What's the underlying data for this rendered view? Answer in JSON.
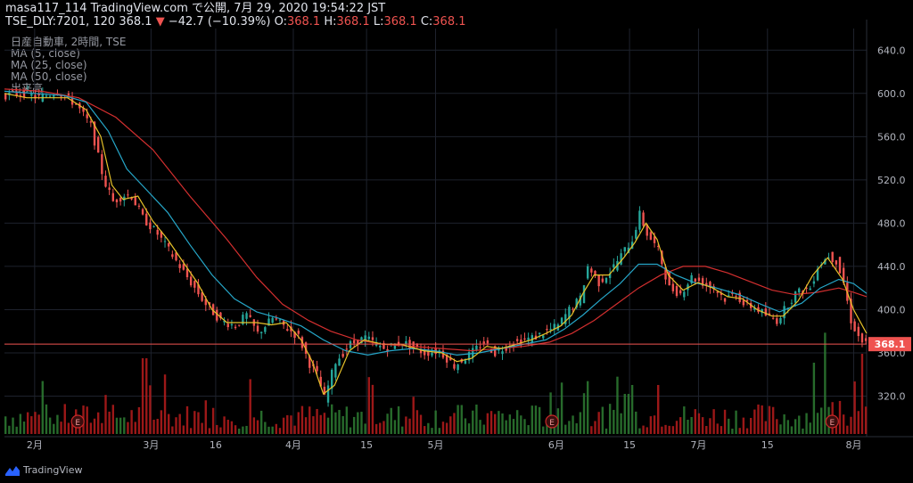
{
  "header": {
    "line1": "masa117_114 TradingView.com で公開, 7月 29, 2020 19:54:22 JST",
    "symbol": "TSE_DLY:7201, 120",
    "last": "368.1",
    "arrow": "▼",
    "change": "−42.7 (−10.39%)",
    "o_label": "O:",
    "o_val": "368.1",
    "h_label": "H:",
    "h_val": "368.1",
    "l_label": "L:",
    "l_val": "368.1",
    "c_label": "C:",
    "c_val": "368.1"
  },
  "legend": {
    "title": "日産自動車, 2時間, TSE",
    "ma5": "MA (5, close)",
    "ma25": "MA (25, close)",
    "ma50": "MA (50, close)",
    "volume": "出来高"
  },
  "footer": {
    "brand": "TradingView"
  },
  "colors": {
    "up": "#26a69a",
    "down": "#ef5350",
    "ma5": "#e6c229",
    "ma25": "#26a6c8",
    "ma50": "#d32f2f",
    "vol_up": "#2e7d32",
    "vol_down": "#b71c1c",
    "price_line": "#ef5350",
    "grid": "#1e222d",
    "earnings": "#c62828"
  },
  "chart_data": {
    "type": "candlestick",
    "price_axis": {
      "ylim": [
        285,
        660
      ],
      "ticks": [
        "640.0",
        "600.0",
        "560.0",
        "520.0",
        "480.0",
        "440.0",
        "400.0",
        "360.0",
        "320.0"
      ]
    },
    "time_axis": {
      "labels": [
        "2月",
        "3月",
        "16",
        "4月",
        "15",
        "5月",
        "6月",
        "15",
        "7月",
        "15",
        "8月"
      ]
    },
    "last_price_label": "368.1",
    "earnings_marker": "E",
    "price_path": [
      [
        0,
        598
      ],
      [
        12,
        600
      ],
      [
        20,
        596
      ],
      [
        30,
        602
      ],
      [
        40,
        590
      ],
      [
        48,
        570
      ],
      [
        55,
        520
      ],
      [
        60,
        500
      ],
      [
        66,
        506
      ],
      [
        70,
        505
      ],
      [
        76,
        485
      ],
      [
        84,
        470
      ],
      [
        92,
        450
      ],
      [
        100,
        430
      ],
      [
        110,
        405
      ],
      [
        118,
        390
      ],
      [
        126,
        385
      ],
      [
        132,
        395
      ],
      [
        138,
        378
      ],
      [
        146,
        392
      ],
      [
        152,
        385
      ],
      [
        160,
        375
      ],
      [
        166,
        350
      ],
      [
        170,
        340
      ],
      [
        174,
        318
      ],
      [
        180,
        352
      ],
      [
        188,
        368
      ],
      [
        196,
        374
      ],
      [
        206,
        364
      ],
      [
        216,
        370
      ],
      [
        228,
        360
      ],
      [
        236,
        362
      ],
      [
        244,
        348
      ],
      [
        252,
        358
      ],
      [
        260,
        370
      ],
      [
        266,
        360
      ],
      [
        274,
        368
      ],
      [
        282,
        372
      ],
      [
        288,
        375
      ],
      [
        294,
        380
      ],
      [
        300,
        385
      ],
      [
        306,
        400
      ],
      [
        312,
        410
      ],
      [
        316,
        440
      ],
      [
        322,
        425
      ],
      [
        328,
        435
      ],
      [
        334,
        450
      ],
      [
        340,
        465
      ],
      [
        344,
        488
      ],
      [
        348,
        470
      ],
      [
        354,
        455
      ],
      [
        360,
        420
      ],
      [
        366,
        415
      ],
      [
        372,
        430
      ],
      [
        378,
        425
      ],
      [
        384,
        420
      ],
      [
        390,
        410
      ],
      [
        396,
        415
      ],
      [
        400,
        405
      ],
      [
        406,
        402
      ],
      [
        412,
        395
      ],
      [
        418,
        390
      ],
      [
        422,
        400
      ],
      [
        428,
        415
      ],
      [
        436,
        420
      ],
      [
        440,
        440
      ],
      [
        446,
        450
      ],
      [
        450,
        445
      ],
      [
        454,
        425
      ],
      [
        458,
        390
      ],
      [
        462,
        375
      ],
      [
        465,
        368
      ]
    ],
    "ma5_path": [
      [
        0,
        600
      ],
      [
        12,
        596
      ],
      [
        24,
        596
      ],
      [
        34,
        596
      ],
      [
        44,
        585
      ],
      [
        52,
        560
      ],
      [
        58,
        515
      ],
      [
        64,
        502
      ],
      [
        72,
        505
      ],
      [
        80,
        482
      ],
      [
        88,
        465
      ],
      [
        96,
        445
      ],
      [
        104,
        425
      ],
      [
        112,
        400
      ],
      [
        120,
        388
      ],
      [
        128,
        388
      ],
      [
        136,
        388
      ],
      [
        144,
        386
      ],
      [
        152,
        388
      ],
      [
        160,
        372
      ],
      [
        166,
        352
      ],
      [
        172,
        322
      ],
      [
        178,
        330
      ],
      [
        186,
        362
      ],
      [
        194,
        372
      ],
      [
        204,
        368
      ],
      [
        214,
        368
      ],
      [
        226,
        362
      ],
      [
        236,
        360
      ],
      [
        244,
        352
      ],
      [
        252,
        355
      ],
      [
        260,
        366
      ],
      [
        268,
        364
      ],
      [
        276,
        368
      ],
      [
        284,
        372
      ],
      [
        292,
        378
      ],
      [
        300,
        385
      ],
      [
        306,
        395
      ],
      [
        312,
        415
      ],
      [
        318,
        432
      ],
      [
        326,
        432
      ],
      [
        334,
        448
      ],
      [
        340,
        462
      ],
      [
        346,
        480
      ],
      [
        352,
        465
      ],
      [
        358,
        432
      ],
      [
        366,
        418
      ],
      [
        374,
        425
      ],
      [
        382,
        420
      ],
      [
        390,
        412
      ],
      [
        398,
        410
      ],
      [
        406,
        400
      ],
      [
        414,
        394
      ],
      [
        420,
        394
      ],
      [
        428,
        408
      ],
      [
        436,
        432
      ],
      [
        444,
        448
      ],
      [
        452,
        428
      ],
      [
        458,
        400
      ],
      [
        465,
        378
      ]
    ],
    "ma25_path": [
      [
        0,
        602
      ],
      [
        16,
        600
      ],
      [
        32,
        598
      ],
      [
        44,
        592
      ],
      [
        56,
        565
      ],
      [
        66,
        530
      ],
      [
        76,
        512
      ],
      [
        88,
        490
      ],
      [
        100,
        460
      ],
      [
        112,
        432
      ],
      [
        124,
        410
      ],
      [
        136,
        398
      ],
      [
        148,
        392
      ],
      [
        160,
        385
      ],
      [
        172,
        372
      ],
      [
        184,
        362
      ],
      [
        196,
        358
      ],
      [
        208,
        362
      ],
      [
        220,
        364
      ],
      [
        232,
        362
      ],
      [
        244,
        358
      ],
      [
        256,
        360
      ],
      [
        268,
        364
      ],
      [
        280,
        368
      ],
      [
        292,
        372
      ],
      [
        302,
        382
      ],
      [
        312,
        395
      ],
      [
        322,
        410
      ],
      [
        332,
        424
      ],
      [
        342,
        442
      ],
      [
        352,
        442
      ],
      [
        362,
        432
      ],
      [
        372,
        425
      ],
      [
        384,
        420
      ],
      [
        396,
        414
      ],
      [
        408,
        405
      ],
      [
        418,
        398
      ],
      [
        430,
        406
      ],
      [
        440,
        420
      ],
      [
        450,
        428
      ],
      [
        458,
        424
      ],
      [
        465,
        415
      ]
    ],
    "ma50_path": [
      [
        0,
        604
      ],
      [
        20,
        602
      ],
      [
        40,
        596
      ],
      [
        60,
        578
      ],
      [
        80,
        548
      ],
      [
        100,
        505
      ],
      [
        120,
        465
      ],
      [
        136,
        430
      ],
      [
        150,
        405
      ],
      [
        164,
        390
      ],
      [
        176,
        380
      ],
      [
        190,
        372
      ],
      [
        204,
        368
      ],
      [
        220,
        366
      ],
      [
        236,
        364
      ],
      [
        252,
        362
      ],
      [
        266,
        364
      ],
      [
        280,
        366
      ],
      [
        294,
        370
      ],
      [
        306,
        378
      ],
      [
        318,
        390
      ],
      [
        330,
        405
      ],
      [
        342,
        420
      ],
      [
        354,
        432
      ],
      [
        366,
        440
      ],
      [
        378,
        440
      ],
      [
        390,
        434
      ],
      [
        402,
        426
      ],
      [
        414,
        418
      ],
      [
        426,
        414
      ],
      [
        438,
        416
      ],
      [
        450,
        420
      ],
      [
        458,
        416
      ],
      [
        465,
        412
      ]
    ],
    "volume_profile": "spikes at ~Feb-13, late May, Jun-8, Jul-16, Jul-28; small elsewhere"
  }
}
